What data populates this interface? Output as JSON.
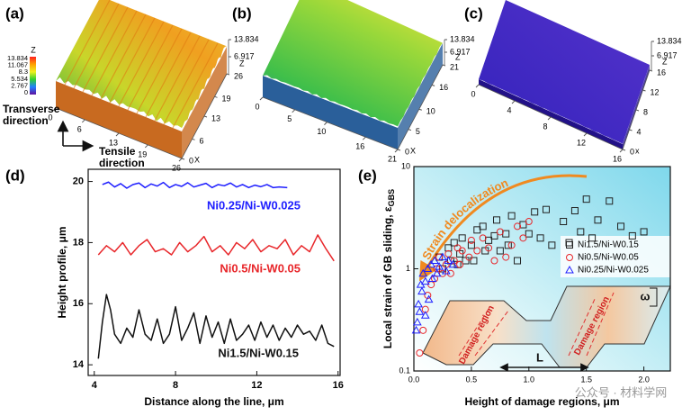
{
  "chart_data": [
    {
      "type": "surface",
      "panel_label": "(a)",
      "xlim": [
        0,
        26
      ],
      "xticks": [
        0,
        6,
        13,
        19,
        26
      ],
      "ylim": [
        0,
        26
      ],
      "yticks": [
        0,
        6,
        13,
        19,
        26
      ],
      "zlim": [
        0,
        13.834
      ],
      "zticks": [
        6.917,
        13.834
      ],
      "x_label": "X",
      "z_label": "Z",
      "colorbar_label": "Z",
      "colorbar_ticks": [
        13.834,
        11.067,
        8.3,
        5.534,
        2.767,
        0
      ],
      "transverse_label": [
        "Transverse",
        "direction"
      ],
      "tensile_label": [
        "Tensile",
        "direction"
      ]
    },
    {
      "type": "surface",
      "panel_label": "(b)",
      "xlim": [
        0,
        21
      ],
      "xticks": [
        0,
        5,
        10,
        16,
        21
      ],
      "ylim": [
        0,
        21
      ],
      "yticks": [
        0,
        5,
        10,
        16,
        21
      ],
      "zlim": [
        0,
        13.834
      ],
      "zticks": [
        6.917,
        13.834
      ],
      "x_label": "X",
      "z_label": "Z"
    },
    {
      "type": "surface",
      "panel_label": "(c)",
      "xlim": [
        0,
        16
      ],
      "xticks": [
        0,
        4,
        8,
        12,
        16
      ],
      "ylim": [
        0,
        16
      ],
      "yticks": [
        0,
        4,
        8,
        12,
        16
      ],
      "zlim": [
        0,
        13.834
      ],
      "zticks": [
        6.917,
        13.834
      ],
      "x_label": "x",
      "z_label": "Z"
    },
    {
      "type": "line",
      "panel_label": "(d)",
      "x_label": "Distance along the line, μm",
      "y_label": "Height profile, μm",
      "xlim": [
        3.7,
        16.1
      ],
      "xticks": [
        4,
        8,
        12,
        16
      ],
      "ylim": [
        13.65,
        20.4
      ],
      "yticks": [
        14,
        16,
        18,
        20
      ],
      "series": [
        {
          "name": "Ni0.25/Ni-W0.025",
          "color": "#1f1fff",
          "x": [
            4.4,
            4.7,
            5.0,
            5.3,
            5.6,
            5.9,
            6.2,
            6.5,
            6.8,
            7.1,
            7.4,
            7.7,
            8.0,
            8.3,
            8.6,
            8.9,
            9.2,
            9.5,
            9.8,
            10.1,
            10.4,
            10.7,
            11.0,
            11.3,
            11.6,
            11.9,
            12.2,
            12.5,
            12.8,
            13.1,
            13.5
          ],
          "values": [
            19.9,
            19.98,
            19.82,
            19.93,
            19.78,
            19.9,
            19.95,
            19.8,
            19.92,
            19.85,
            19.97,
            19.8,
            19.9,
            19.84,
            19.96,
            19.82,
            19.88,
            19.94,
            19.8,
            19.9,
            19.86,
            19.95,
            19.82,
            19.9,
            19.8,
            19.88,
            19.83,
            19.9,
            19.8,
            19.82,
            19.8
          ]
        },
        {
          "name": "Ni0.5/Ni-W0.05",
          "color": "#e8262a",
          "x": [
            4.2,
            4.6,
            5.0,
            5.4,
            5.8,
            6.2,
            6.6,
            7.0,
            7.4,
            7.8,
            8.2,
            8.6,
            9.0,
            9.4,
            9.8,
            10.2,
            10.6,
            11.0,
            11.4,
            11.8,
            12.2,
            12.6,
            13.0,
            13.4,
            13.8,
            14.2,
            14.6,
            15.0,
            15.4,
            15.8
          ],
          "values": [
            17.6,
            17.9,
            17.7,
            18.0,
            17.6,
            17.9,
            18.1,
            17.7,
            17.8,
            17.6,
            18.0,
            17.7,
            17.9,
            18.2,
            17.7,
            17.9,
            17.6,
            18.0,
            17.8,
            18.1,
            17.7,
            17.9,
            17.8,
            18.1,
            17.6,
            17.9,
            17.7,
            18.25,
            17.8,
            17.4
          ]
        },
        {
          "name": "Ni1.5/Ni-W0.15",
          "color": "#111111",
          "x": [
            4.2,
            4.4,
            4.6,
            4.8,
            5.0,
            5.3,
            5.6,
            5.9,
            6.2,
            6.5,
            6.8,
            7.1,
            7.4,
            7.7,
            8.0,
            8.3,
            8.6,
            8.9,
            9.2,
            9.5,
            9.8,
            10.1,
            10.4,
            10.7,
            11.0,
            11.3,
            11.6,
            11.9,
            12.2,
            12.5,
            12.8,
            13.1,
            13.4,
            13.7,
            14.0,
            14.3,
            14.6,
            14.9,
            15.2,
            15.5,
            15.8
          ],
          "values": [
            14.2,
            15.4,
            16.3,
            15.8,
            15.0,
            14.7,
            15.2,
            14.9,
            15.8,
            15.0,
            14.8,
            15.5,
            14.7,
            15.0,
            15.9,
            14.8,
            15.2,
            15.7,
            14.7,
            15.6,
            14.9,
            15.4,
            14.7,
            15.5,
            14.8,
            15.0,
            15.3,
            14.8,
            15.4,
            14.9,
            15.3,
            14.8,
            15.2,
            14.9,
            15.3,
            15.0,
            15.1,
            14.8,
            15.3,
            14.7,
            14.6
          ]
        }
      ]
    },
    {
      "type": "scatter",
      "panel_label": "(e)",
      "x_label": "Height of damage regions, μm",
      "y_label": "Local strain of GB sliding, ε",
      "y_label_sub": "GBS",
      "log_y": true,
      "xlim": [
        0,
        2.23
      ],
      "xticks": [
        {
          "value": 0,
          "label": "0.0"
        },
        0.5,
        {
          "value": 1,
          "label": "1.0"
        },
        1.5,
        {
          "value": 2,
          "label": "2.0"
        }
      ],
      "ylim": [
        0.1,
        10
      ],
      "yticks": [
        0.1,
        1,
        10
      ],
      "annotation": "Strain delocalization",
      "inset_labels": [
        "Damage region",
        "Damage region",
        "ω",
        "L"
      ],
      "watermark": "公众号 · 材料学网",
      "series": [
        {
          "name": "Ni1.5/Ni-W0.15",
          "color": "#222222",
          "marker": "square",
          "x": [
            0.22,
            0.25,
            0.3,
            0.32,
            0.35,
            0.38,
            0.4,
            0.42,
            0.45,
            0.5,
            0.52,
            0.55,
            0.6,
            0.62,
            0.65,
            0.7,
            0.72,
            0.75,
            0.8,
            0.82,
            0.85,
            0.9,
            0.95,
            1.0,
            1.05,
            1.1,
            1.15,
            1.2,
            1.3,
            1.35,
            1.4,
            1.45,
            1.5,
            1.55,
            1.6,
            1.7,
            1.8,
            1.9,
            2.0
          ],
          "values": [
            1.3,
            1.0,
            1.6,
            1.2,
            1.8,
            1.1,
            1.4,
            2.0,
            1.2,
            1.7,
            1.2,
            2.4,
            2.6,
            1.5,
            1.9,
            2.1,
            3.0,
            1.5,
            2.2,
            1.7,
            3.3,
            1.2,
            2.7,
            2.2,
            3.6,
            2.0,
            3.8,
            1.7,
            2.9,
            1.8,
            3.7,
            2.3,
            4.8,
            2.0,
            3.0,
            4.6,
            2.6,
            2.1,
            2.3
          ]
        },
        {
          "name": "Ni0.5/Ni-W0.05",
          "color": "#e8262a",
          "marker": "circle",
          "x": [
            0.05,
            0.08,
            0.1,
            0.12,
            0.15,
            0.18,
            0.2,
            0.22,
            0.25,
            0.28,
            0.3,
            0.32,
            0.35,
            0.38,
            0.4,
            0.42,
            0.48,
            0.5,
            0.55,
            0.6,
            0.65,
            0.7,
            0.75,
            0.8,
            0.85,
            0.9,
            0.95,
            1.0
          ],
          "values": [
            0.15,
            0.25,
            0.4,
            0.55,
            0.7,
            0.8,
            1.0,
            1.3,
            0.9,
            1.1,
            1.4,
            0.9,
            1.2,
            1.6,
            1.1,
            1.5,
            1.3,
            1.9,
            1.5,
            2.0,
            1.6,
            1.2,
            2.3,
            1.3,
            1.7,
            2.6,
            2.0,
            2.9
          ]
        },
        {
          "name": "Ni0.25/Ni-W0.025",
          "color": "#1f1fff",
          "marker": "triangle",
          "x": [
            0.02,
            0.03,
            0.04,
            0.05,
            0.06,
            0.07,
            0.08,
            0.1,
            0.1,
            0.12,
            0.13,
            0.15,
            0.16,
            0.18,
            0.2,
            0.22,
            0.25,
            0.28,
            0.3,
            0.34
          ],
          "values": [
            0.25,
            0.3,
            0.45,
            0.38,
            0.7,
            0.6,
            0.9,
            0.35,
            0.75,
            1.0,
            0.5,
            1.1,
            0.8,
            1.2,
            0.9,
            1.05,
            1.3,
            0.95,
            1.2,
            1.1
          ]
        }
      ]
    }
  ]
}
